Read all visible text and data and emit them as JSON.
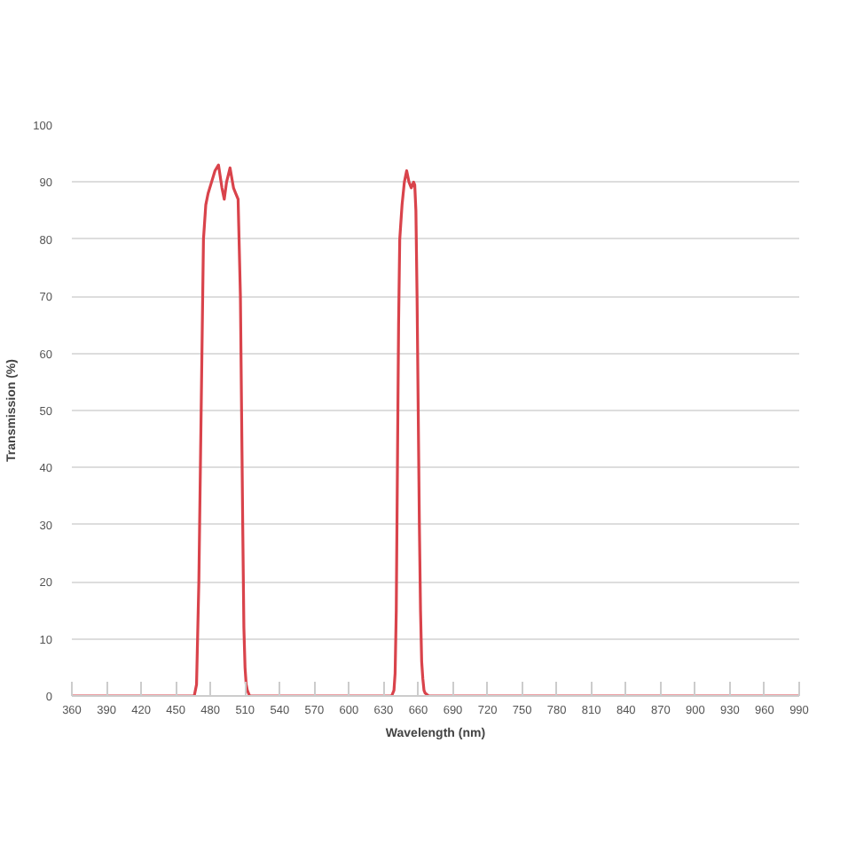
{
  "chart_data": {
    "type": "line",
    "xlabel": "Wavelength (nm)",
    "ylabel": "Transmission (%)",
    "xlim": [
      360,
      990
    ],
    "ylim": [
      0,
      100
    ],
    "xticks": [
      360,
      390,
      420,
      450,
      480,
      510,
      540,
      570,
      600,
      630,
      660,
      690,
      720,
      750,
      780,
      810,
      840,
      870,
      900,
      930,
      960,
      990
    ],
    "yticks": [
      0,
      10,
      20,
      30,
      40,
      50,
      60,
      70,
      80,
      90,
      100
    ],
    "grid": "y",
    "marker": "none",
    "line_style": "solid",
    "series": [
      {
        "color": "#d9434b",
        "x": [
          360,
          466,
          468,
          470,
          472,
          474,
          476,
          478,
          481,
          484,
          487,
          490,
          492,
          494,
          497,
          500,
          502,
          504,
          506,
          507,
          508,
          509,
          510,
          511,
          512,
          514,
          530,
          630,
          637,
          639,
          640,
          641,
          642,
          643,
          644,
          646,
          648,
          650,
          652,
          654,
          656,
          657,
          658,
          659,
          660,
          661,
          662,
          663,
          664,
          665,
          666,
          669,
          990
        ],
        "values": [
          0,
          0,
          2,
          20,
          50,
          80,
          86,
          88,
          90,
          92,
          93,
          89,
          87,
          90,
          92.5,
          89,
          88,
          87,
          70,
          50,
          30,
          12,
          5,
          2,
          1,
          0,
          0,
          0,
          0,
          1,
          4,
          15,
          40,
          65,
          80,
          86,
          90,
          92,
          90,
          89,
          90,
          89.5,
          85,
          70,
          50,
          30,
          15,
          6,
          3,
          1,
          0.5,
          0,
          0
        ]
      }
    ]
  }
}
